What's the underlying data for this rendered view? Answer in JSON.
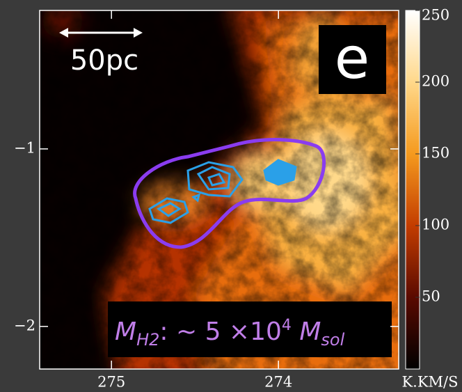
{
  "chart_data": {
    "type": "image",
    "xlim": [
      275.43,
      273.28
    ],
    "ylim": [
      -2.24,
      -0.22
    ],
    "xticks": [
      275,
      274
    ],
    "yticks": [
      {
        "value": -1,
        "label": "−1"
      },
      {
        "value": -2,
        "label": "−2"
      }
    ],
    "clim": [
      0,
      250
    ],
    "cticks": [
      50,
      100,
      150,
      200,
      250
    ],
    "colorbar_label": "K.KM/S",
    "scale_label": "50pc",
    "panel_label": "e",
    "annotation": [
      "M",
      "H2",
      ": ~ 5 ×10",
      "4",
      " M",
      "sol"
    ]
  }
}
